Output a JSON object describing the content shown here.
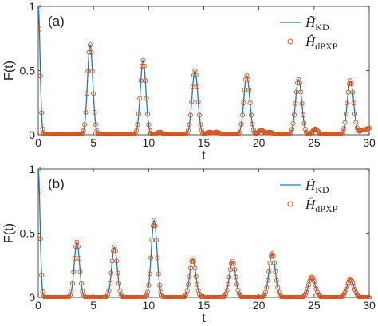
{
  "chart_data": [
    {
      "type": "line",
      "panel_label": "(a)",
      "xlabel": "t",
      "ylabel": "F(t)",
      "xlim": [
        0,
        30
      ],
      "ylim": [
        0,
        1
      ],
      "xticks": [
        0,
        5,
        10,
        15,
        20,
        25,
        30
      ],
      "yticks": [
        0,
        0.5,
        1
      ],
      "tick_labels_x": [
        "0",
        "5",
        "10",
        "15",
        "20",
        "25",
        "30"
      ],
      "tick_labels_y": [
        "0",
        "0.5",
        "1"
      ],
      "grid": false,
      "legend_position": "top-right",
      "series": [
        {
          "name": "H̃_KD",
          "legend_main": "H̃",
          "legend_sub": "KD",
          "style": "line",
          "color": "#1f77b4"
        },
        {
          "name": "Ĥ_dPXP",
          "legend_main": "Ĥ",
          "legend_sub": "dPXP",
          "style": "markers",
          "color": "#d95319"
        }
      ],
      "revival_peaks": {
        "t": [
          0,
          4.7,
          9.5,
          14.2,
          18.9,
          23.6,
          28.3
        ],
        "F": [
          1.0,
          0.7,
          0.58,
          0.5,
          0.46,
          0.43,
          0.42
        ]
      },
      "minor_bumps": {
        "t": [
          11.0,
          15.5,
          16.2,
          20.2,
          21.0,
          25.1,
          29.4,
          30.0
        ],
        "F": [
          0.02,
          0.02,
          0.02,
          0.035,
          0.02,
          0.045,
          0.035,
          0.05
        ]
      }
    },
    {
      "type": "line",
      "panel_label": "(b)",
      "xlabel": "t",
      "ylabel": "F(t)",
      "xlim": [
        0,
        30
      ],
      "ylim": [
        0,
        1
      ],
      "xticks": [
        0,
        5,
        10,
        15,
        20,
        25,
        30
      ],
      "yticks": [
        0,
        0.5,
        1
      ],
      "tick_labels_x": [
        "0",
        "5",
        "10",
        "15",
        "20",
        "25",
        "30"
      ],
      "tick_labels_y": [
        "0",
        "0.5",
        "1"
      ],
      "grid": false,
      "legend_position": "top-right",
      "series": [
        {
          "name": "H̃_KD",
          "legend_main": "H̃",
          "legend_sub": "KD",
          "style": "line",
          "color": "#1f77b4"
        },
        {
          "name": "Ĥ_dPXP",
          "legend_main": "Ĥ",
          "legend_sub": "dPXP",
          "style": "markers",
          "color": "#d95319"
        }
      ],
      "revival_peaks": {
        "t": [
          0,
          3.5,
          6.9,
          10.5,
          14.0,
          17.6,
          21.2,
          24.8,
          28.3
        ],
        "F": [
          1.0,
          0.43,
          0.39,
          0.6,
          0.3,
          0.28,
          0.34,
          0.16,
          0.14
        ]
      },
      "minor_bumps": {
        "t": [],
        "F": []
      }
    }
  ]
}
